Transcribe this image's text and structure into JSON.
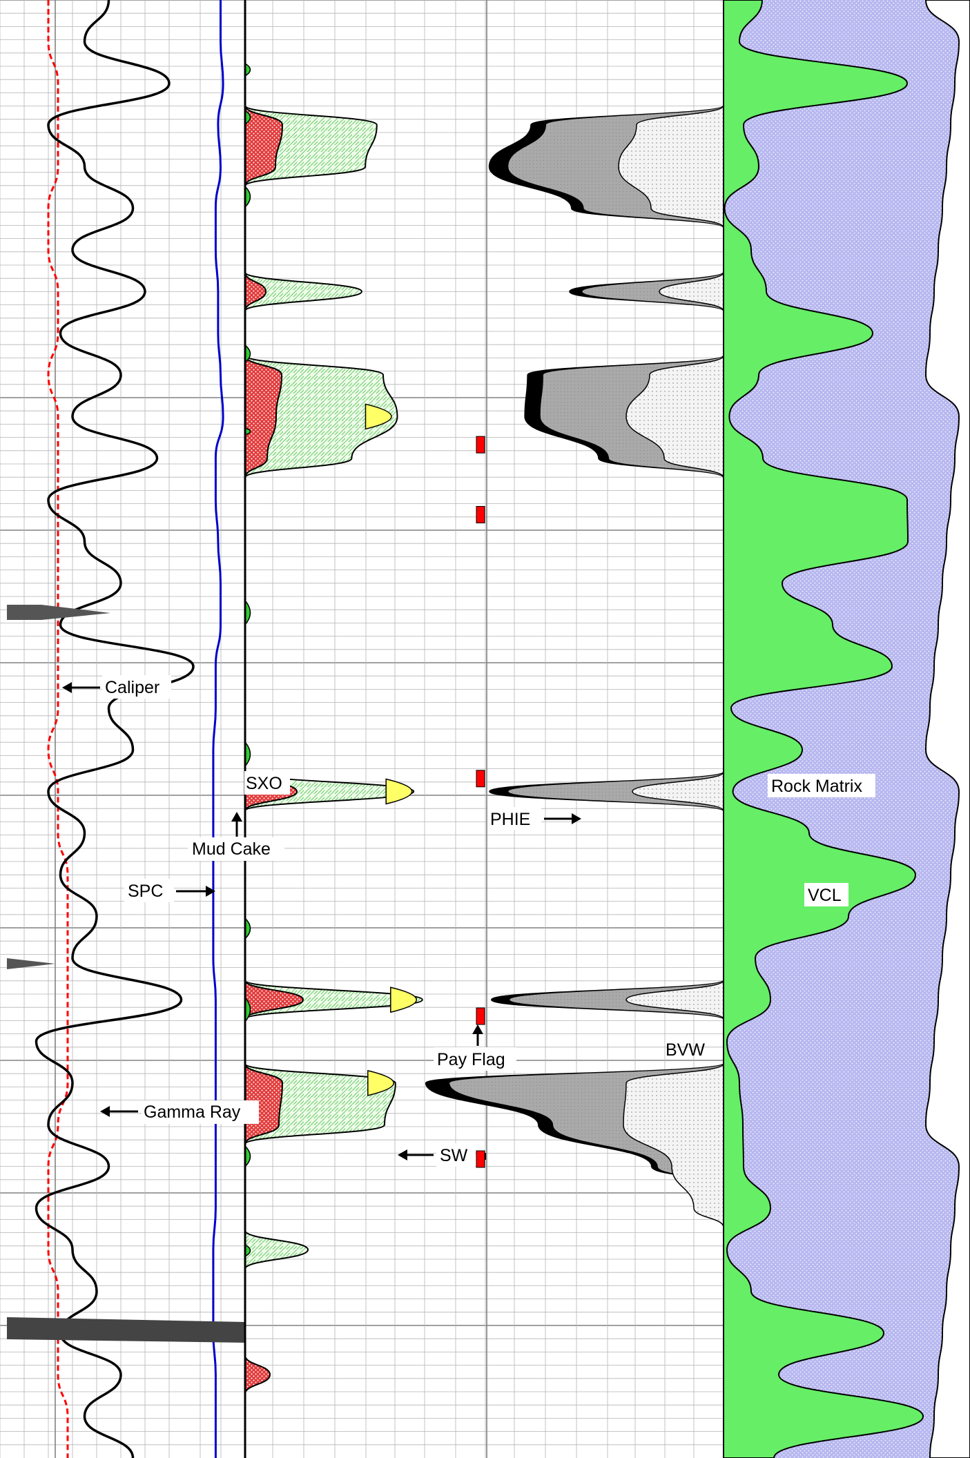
{
  "colors": {
    "grid": "#b4b4b4",
    "grid_major": "#808080",
    "caliper": "#ff0000",
    "gamma_ray": "#000000",
    "spc": "#0000cc",
    "mud_cake": "#33cc33",
    "sxo_fill": "#e23b3b",
    "sw_fill": "#c8f0c0",
    "hydrocarbon": "#ffff66",
    "pay_flag": "#ff0000",
    "phie_outline": "#000000",
    "bvw_fill": "#a9a9a9",
    "vcl": "#66ee66",
    "rock_matrix": "#b8b8f0"
  },
  "labels": {
    "caliper": "Caliper",
    "mud_cake": "Mud Cake",
    "spc": "SPC",
    "gamma_ray": "Gamma Ray",
    "sxo": "SXO",
    "sw": "SW",
    "pay_flag": "Pay Flag",
    "phie": "PHIE",
    "bvw": "BVW",
    "rock_matrix": "Rock Matrix",
    "vcl": "VCL"
  },
  "chart_data": {
    "type": "area",
    "depth_samples": 36,
    "series": [
      {
        "name": "Caliper",
        "values": [
          0.05,
          0.05,
          0.06,
          0.06,
          0.06,
          0.05,
          0.05,
          0.06,
          0.06,
          0.05,
          0.06,
          0.06,
          0.06,
          0.06,
          0.06,
          0.06,
          0.06,
          0.06,
          0.05,
          0.06,
          0.06,
          0.07,
          0.07,
          0.07,
          0.07,
          0.07,
          0.07,
          0.06,
          0.05,
          0.05,
          0.05,
          0.06,
          0.06,
          0.06,
          0.07,
          0.07
        ]
      },
      {
        "name": "Gamma Ray",
        "values": [
          0.45,
          0.35,
          0.7,
          0.2,
          0.35,
          0.55,
          0.3,
          0.6,
          0.25,
          0.5,
          0.3,
          0.65,
          0.2,
          0.35,
          0.5,
          0.25,
          0.8,
          0.45,
          0.55,
          0.2,
          0.35,
          0.25,
          0.4,
          0.3,
          0.75,
          0.15,
          0.3,
          0.2,
          0.45,
          0.15,
          0.3,
          0.4,
          0.25,
          0.5,
          0.35,
          0.55
        ]
      },
      {
        "name": "SPC",
        "values": [
          0.9,
          0.9,
          0.91,
          0.89,
          0.9,
          0.88,
          0.88,
          0.89,
          0.89,
          0.9,
          0.91,
          0.88,
          0.88,
          0.89,
          0.9,
          0.9,
          0.88,
          0.88,
          0.87,
          0.87,
          0.87,
          0.87,
          0.87,
          0.87,
          0.88,
          0.88,
          0.88,
          0.88,
          0.88,
          0.88,
          0.87,
          0.87,
          0.87,
          0.88,
          0.88,
          0.88
        ]
      },
      {
        "name": "SXO",
        "values": [
          0,
          0,
          0,
          0.16,
          0.16,
          0,
          0,
          0.12,
          0,
          0.17,
          0.13,
          0.12,
          0,
          0,
          0,
          0,
          0,
          0,
          0,
          0.25,
          0,
          0,
          0,
          0,
          0.26,
          0,
          0.18,
          0.15,
          0,
          0,
          0,
          0,
          0,
          0.12,
          0,
          0
        ]
      },
      {
        "name": "SW",
        "values": [
          0,
          0,
          0,
          0.56,
          0.54,
          0,
          0,
          0.53,
          0,
          0.6,
          0.65,
          0.48,
          0,
          0,
          0,
          0,
          0,
          0,
          0,
          0.74,
          0,
          0,
          0,
          0,
          0.76,
          0,
          0.66,
          0.6,
          0,
          0,
          0.27,
          0,
          0,
          0,
          0,
          0
        ]
      },
      {
        "name": "PHIE",
        "values": [
          0,
          0,
          0,
          0.62,
          0.78,
          0.5,
          0,
          0.52,
          0,
          0.64,
          0.64,
          0.42,
          0,
          0,
          0,
          0,
          0,
          0,
          0,
          0.77,
          0,
          0,
          0,
          0,
          0.75,
          0,
          0.98,
          0.6,
          0.25,
          0,
          0,
          0,
          0,
          0,
          0,
          0
        ]
      },
      {
        "name": "BVW",
        "values": [
          0,
          0,
          0,
          0.4,
          0.52,
          0.35,
          0,
          0.33,
          0,
          0.35,
          0.45,
          0.3,
          0,
          0,
          0,
          0,
          0,
          0,
          0,
          0.44,
          0,
          0,
          0,
          0,
          0.45,
          0,
          0.47,
          0.47,
          0.27,
          0.15,
          0,
          0,
          0,
          0,
          0,
          0
        ]
      },
      {
        "name": "VCL",
        "values": [
          0.2,
          0.05,
          0.8,
          0.05,
          0.15,
          0.04,
          0.1,
          0.2,
          0.6,
          0.15,
          0.06,
          0.15,
          0.8,
          0.75,
          0.25,
          0.5,
          0.7,
          0.05,
          0.3,
          0.04,
          0.4,
          0.8,
          0.55,
          0.1,
          0.2,
          0.05,
          0.05,
          0.1,
          0.05,
          0.2,
          0.05,
          0.1,
          0.7,
          0.2,
          0.85,
          0.25
        ]
      }
    ],
    "pay_flags": [
      {
        "depth_frac": 0.305,
        "label": ""
      },
      {
        "depth_frac": 0.353,
        "label": ""
      },
      {
        "depth_frac": 0.534,
        "label": ""
      },
      {
        "depth_frac": 0.697,
        "label": ""
      },
      {
        "depth_frac": 0.795,
        "label": ""
      }
    ]
  }
}
